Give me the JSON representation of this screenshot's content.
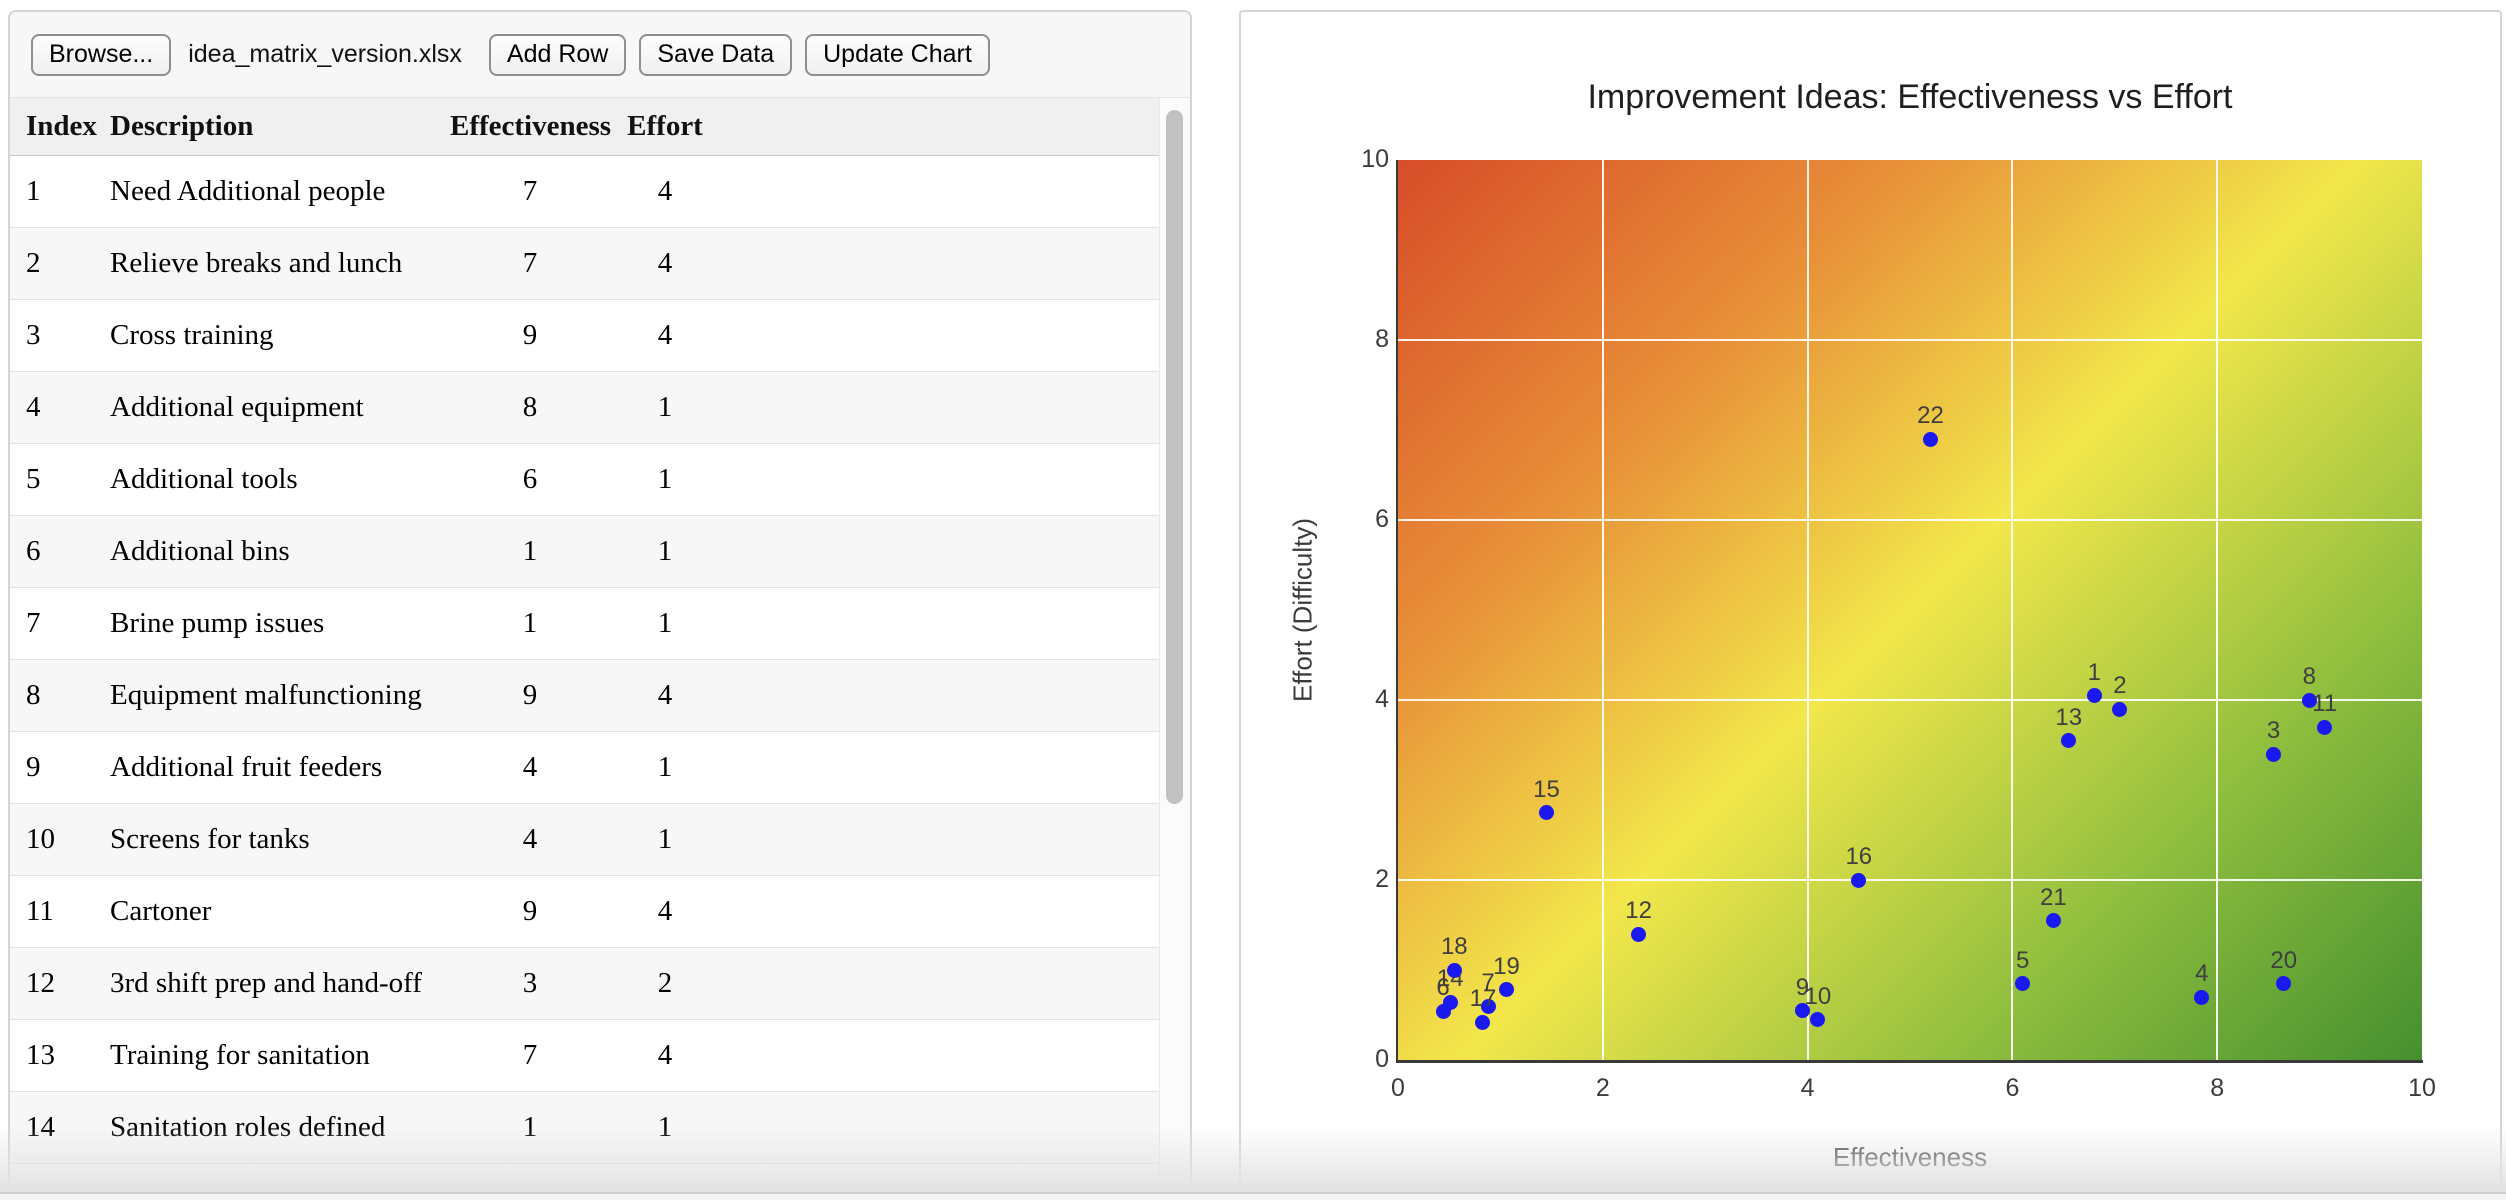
{
  "toolbar": {
    "browse_label": "Browse...",
    "filename": "idea_matrix_version.xlsx",
    "add_row_label": "Add Row",
    "save_data_label": "Save Data",
    "update_chart_label": "Update Chart"
  },
  "table": {
    "columns": [
      "Index",
      "Description",
      "Effectiveness",
      "Effort"
    ],
    "rows": [
      {
        "index": "1",
        "description": "Need Additional people",
        "effectiveness": "7",
        "effort": "4"
      },
      {
        "index": "2",
        "description": "Relieve breaks and lunch",
        "effectiveness": "7",
        "effort": "4"
      },
      {
        "index": "3",
        "description": "Cross training",
        "effectiveness": "9",
        "effort": "4"
      },
      {
        "index": "4",
        "description": "Additional equipment",
        "effectiveness": "8",
        "effort": "1"
      },
      {
        "index": "5",
        "description": "Additional tools",
        "effectiveness": "6",
        "effort": "1"
      },
      {
        "index": "6",
        "description": "Additional bins",
        "effectiveness": "1",
        "effort": "1"
      },
      {
        "index": "7",
        "description": "Brine pump issues",
        "effectiveness": "1",
        "effort": "1"
      },
      {
        "index": "8",
        "description": "Equipment malfunctioning",
        "effectiveness": "9",
        "effort": "4"
      },
      {
        "index": "9",
        "description": "Additional fruit feeders",
        "effectiveness": "4",
        "effort": "1"
      },
      {
        "index": "10",
        "description": "Screens for tanks",
        "effectiveness": "4",
        "effort": "1"
      },
      {
        "index": "11",
        "description": "Cartoner",
        "effectiveness": "9",
        "effort": "4"
      },
      {
        "index": "12",
        "description": "3rd shift prep and hand-off",
        "effectiveness": "3",
        "effort": "2"
      },
      {
        "index": "13",
        "description": "Training for sanitation",
        "effectiveness": "7",
        "effort": "4"
      },
      {
        "index": "14",
        "description": "Sanitation roles defined",
        "effectiveness": "1",
        "effort": "1"
      }
    ]
  },
  "chart_data": {
    "type": "scatter",
    "title": "Improvement Ideas: Effectiveness vs Effort",
    "xlabel": "Effectiveness",
    "ylabel": "Effort (Difficulty)",
    "xlim": [
      0,
      10
    ],
    "ylim": [
      0,
      10
    ],
    "xticks": [
      0,
      2,
      4,
      6,
      8,
      10
    ],
    "yticks": [
      0,
      2,
      4,
      6,
      8,
      10
    ],
    "grid": true,
    "gridline_color": "#ffffff",
    "legend": "none",
    "point_color": "#1a1af0",
    "point_label_color": "#3f3f3f",
    "background_gradient": [
      "#d74d28",
      "#e88f38",
      "#f2e74b",
      "#8fbe3e",
      "#45902f"
    ],
    "points": [
      {
        "label": "1",
        "x": 6.8,
        "y": 4.05
      },
      {
        "label": "2",
        "x": 7.05,
        "y": 3.9
      },
      {
        "label": "3",
        "x": 8.55,
        "y": 3.4
      },
      {
        "label": "4",
        "x": 7.85,
        "y": 0.7
      },
      {
        "label": "5",
        "x": 6.1,
        "y": 0.85
      },
      {
        "label": "6",
        "x": 0.44,
        "y": 0.54
      },
      {
        "label": "7",
        "x": 0.88,
        "y": 0.6
      },
      {
        "label": "8",
        "x": 8.9,
        "y": 4.0
      },
      {
        "label": "9",
        "x": 3.95,
        "y": 0.55
      },
      {
        "label": "10",
        "x": 4.1,
        "y": 0.45
      },
      {
        "label": "11",
        "x": 9.05,
        "y": 3.7
      },
      {
        "label": "12",
        "x": 2.35,
        "y": 1.4
      },
      {
        "label": "13",
        "x": 6.55,
        "y": 3.55
      },
      {
        "label": "14",
        "x": 0.51,
        "y": 0.64
      },
      {
        "label": "15",
        "x": 1.45,
        "y": 2.75
      },
      {
        "label": "16",
        "x": 4.5,
        "y": 2.0
      },
      {
        "label": "17",
        "x": 0.83,
        "y": 0.42
      },
      {
        "label": "18",
        "x": 0.55,
        "y": 1.0
      },
      {
        "label": "19",
        "x": 1.06,
        "y": 0.78
      },
      {
        "label": "20",
        "x": 8.65,
        "y": 0.85
      },
      {
        "label": "21",
        "x": 6.4,
        "y": 1.55
      },
      {
        "label": "22",
        "x": 5.2,
        "y": 6.9
      }
    ]
  }
}
